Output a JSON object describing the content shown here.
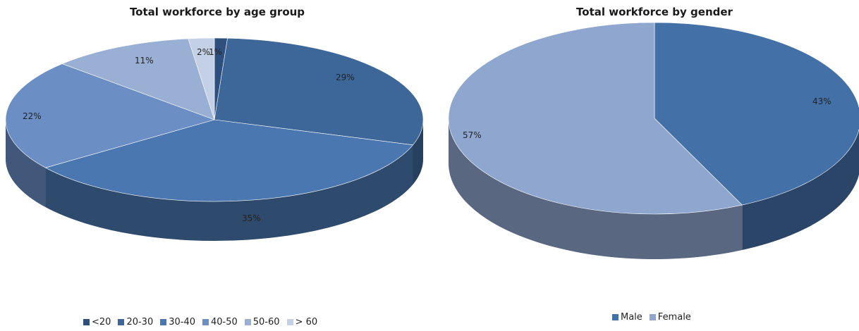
{
  "chart_data": [
    {
      "type": "pie",
      "title": "Total workforce by age group",
      "categories": [
        "<20",
        "20-30",
        "30-40",
        "40-50",
        "50-60",
        "> 60"
      ],
      "values": [
        1,
        29,
        35,
        22,
        11,
        2
      ],
      "labels": [
        "1%",
        "29%",
        "35%",
        "22%",
        "11%",
        "2%"
      ],
      "colors": [
        "#2f4f7e",
        "#3e6799",
        "#4a77b0",
        "#6b8ec4",
        "#9aafd4",
        "#c4d0e6"
      ],
      "legend_position": "bottom",
      "style": "3d"
    },
    {
      "type": "pie",
      "title": "Total workforce by gender",
      "categories": [
        "Male",
        "Female"
      ],
      "values": [
        43,
        57
      ],
      "labels": [
        "43%",
        "57%"
      ],
      "colors": [
        "#4470a8",
        "#8fa6cf"
      ],
      "legend_position": "bottom",
      "style": "3d"
    }
  ]
}
